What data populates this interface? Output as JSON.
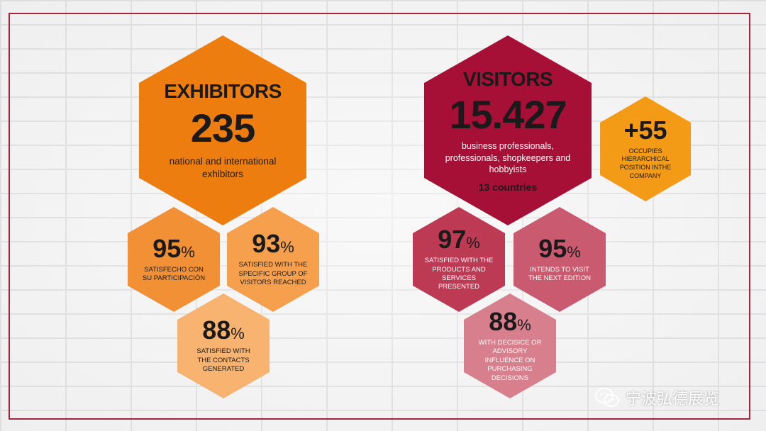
{
  "colors": {
    "frame": "#a3243f",
    "exhibitor_main": "#ee7d0f",
    "exhibitor_light": "#f6a04e",
    "exhibitor_lighter": "#f7b36f",
    "visitor_main": "#a60f36",
    "visitor_mid": "#bd3a55",
    "visitor_light": "#c95a6f",
    "visitor_lighter": "#d77f8d",
    "accent_hex": "#f39a16"
  },
  "exhibitors": {
    "title": "EXHIBITORS",
    "number": "235",
    "description": "national and international exhibitors",
    "stats": [
      {
        "value": "95",
        "unit": "%",
        "label": "SATISFECHO CON SU PARTICIPACIÓN"
      },
      {
        "value": "93",
        "unit": "%",
        "label": "SATISFIED WITH THE SPECIFIC GROUP OF VISITORS REACHED"
      },
      {
        "value": "88",
        "unit": "%",
        "label": "SATISFIED WITH THE CONTACTS GENERATED"
      }
    ]
  },
  "visitors": {
    "title": "VISITORS",
    "number": "15.427",
    "description": "business professionals, professionals, shopkeepers and hobbyists",
    "countries": "13 countries",
    "extra": {
      "value": "+55",
      "label": "OCCUPIES HIERARCHICAL POSITION INTHE COMPANY"
    },
    "stats": [
      {
        "value": "97",
        "unit": "%",
        "label": "SATISFIED WITH THE PRODUCTS AND SERVICES PRESENTED"
      },
      {
        "value": "95",
        "unit": "%",
        "label": "INTENDS TO VISIT THE NEXT EDITION"
      },
      {
        "value": "88",
        "unit": "%",
        "label": "WITH DECISICE OR ADVISORY INFLUENCE ON PURCHASING DECISIONS"
      }
    ]
  },
  "watermark": {
    "text": "宁波弘德展览",
    "icon": "wechat-icon"
  }
}
